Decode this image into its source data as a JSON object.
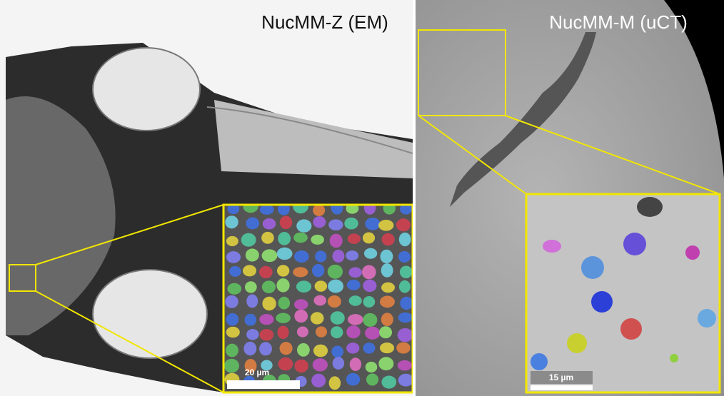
{
  "panels": [
    {
      "title": "NucMM-Z (EM)",
      "scale_bar": "20 µm"
    },
    {
      "title": "NucMM-M (uCT)",
      "scale_bar": "15 µm"
    }
  ]
}
